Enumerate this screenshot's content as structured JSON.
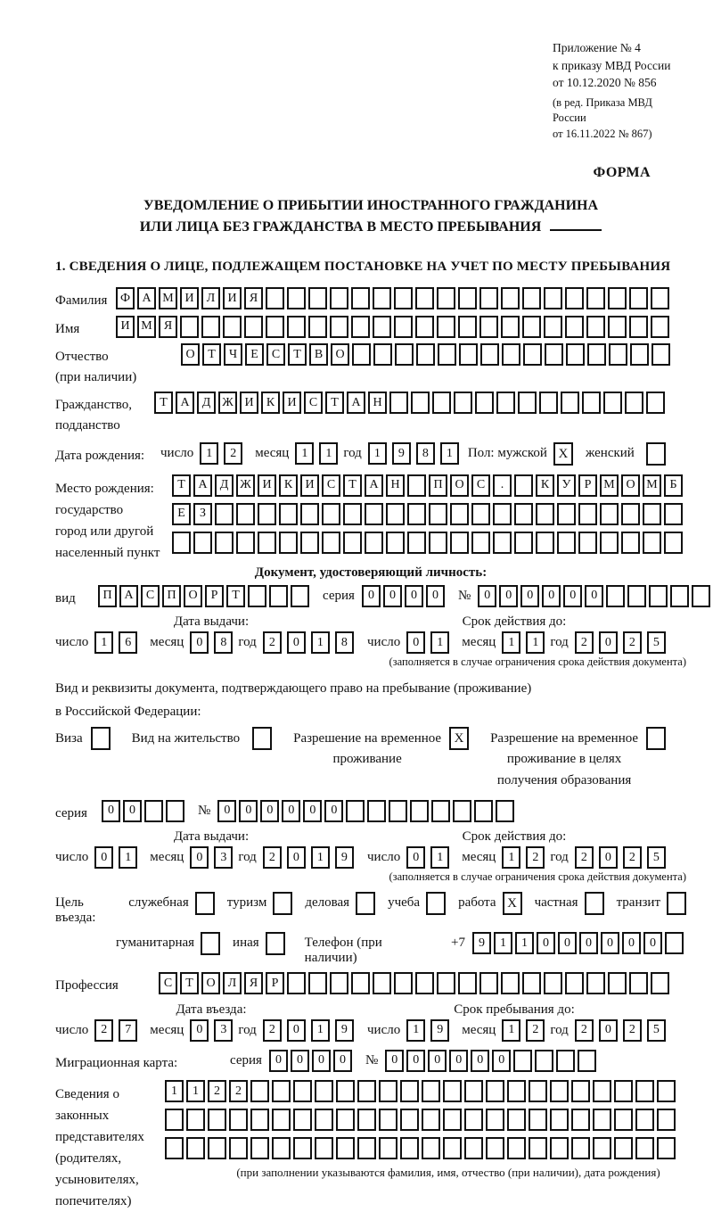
{
  "colors": {
    "background": "#ffffff",
    "text": "#111111",
    "box_border": "#111111"
  },
  "labels": {
    "day": "число",
    "month": "месяц",
    "year": "год",
    "series": "серия",
    "number": "№",
    "issue_date": "Дата выдачи:",
    "valid_until": "Срок действия до:",
    "entry_date": "Дата въезда:",
    "stay_until": "Срок пребывания до:",
    "restriction_note": "(заполняется в случае ограничения срока действия документа)"
  },
  "header": {
    "annex_lines": [
      "Приложение № 4",
      "к приказу МВД России",
      "от 10.12.2020 № 856"
    ],
    "amendment_lines": [
      "(в ред. Приказа МВД России",
      "от 16.11.2022 № 867)"
    ],
    "form_word": "ФОРМА",
    "title_line1": "УВЕДОМЛЕНИЕ О ПРИБЫТИИ ИНОСТРАННОГО ГРАЖДАНИНА",
    "title_line2": "ИЛИ ЛИЦА БЕЗ ГРАЖДАНСТВА В МЕСТО ПРЕБЫВАНИЯ",
    "section1_title": "1. СВЕДЕНИЯ О ЛИЦЕ, ПОДЛЕЖАЩЕМ ПОСТАНОВКЕ НА УЧЕТ ПО МЕСТУ ПРЕБЫВАНИЯ"
  },
  "person": {
    "surname": {
      "label": "Фамилия",
      "text": "ФАМИЛИЯ",
      "len": 26
    },
    "firstname": {
      "label": "Имя",
      "text": "ИМЯ",
      "len": 26
    },
    "patronymic": {
      "label_line1": "Отчество",
      "label_line2": "(при наличии)",
      "text": "ОТЧЕСТВО",
      "len": 23
    },
    "citizenship": {
      "label_line1": "Гражданство,",
      "label_line2": "подданство",
      "text": "ТАДЖИКИСТАН",
      "len": 24
    },
    "birth_date": {
      "label": "Дата рождения:",
      "day": "12",
      "month": "11",
      "year": "1981"
    },
    "sex": {
      "label": "Пол:",
      "male_label": "мужской",
      "male_checked": "X",
      "female_label": "женский",
      "female_checked": ""
    },
    "birth_place": {
      "label": "Место рождения:",
      "sub_labels": [
        "государство",
        "город или другой",
        "населенный пункт"
      ],
      "rows": [
        {
          "text": "ТАДЖИКИСТАН ПОС. КУРМОМБ",
          "len": 24
        },
        {
          "text": "ЕЗ",
          "len": 24
        },
        {
          "text": "",
          "len": 24
        }
      ]
    }
  },
  "identity_doc": {
    "heading": "Документ, удостоверяющий личность:",
    "kind": {
      "label": "вид",
      "text": "ПАСПОРТ",
      "len": 10
    },
    "series": {
      "text": "0000",
      "len": 4
    },
    "number": {
      "text": "000000",
      "len": 11
    },
    "issue": {
      "day": "16",
      "month": "08",
      "year": "2018"
    },
    "expiry": {
      "day": "01",
      "month": "11",
      "year": "2025"
    }
  },
  "residence_doc": {
    "intro_line1": "Вид и реквизиты документа, подтверждающего право на пребывание (проживание)",
    "intro_line2": "в Российской Федерации:",
    "options": [
      {
        "lines": [
          "Виза"
        ],
        "checked": ""
      },
      {
        "lines": [
          "Вид на жительство"
        ],
        "checked": ""
      },
      {
        "lines": [
          "Разрешение на временное",
          "проживание"
        ],
        "checked": "X"
      },
      {
        "lines": [
          "Разрешение на временное",
          "проживание в целях",
          "получения образования"
        ],
        "checked": ""
      }
    ],
    "series": {
      "text": "00",
      "len": 4
    },
    "number": {
      "text": "000000",
      "len": 14
    },
    "issue": {
      "day": "01",
      "month": "03",
      "year": "2019"
    },
    "expiry": {
      "day": "01",
      "month": "12",
      "year": "2025"
    }
  },
  "visit": {
    "purpose_label": "Цель въезда:",
    "purposes": [
      {
        "label": "служебная",
        "checked": ""
      },
      {
        "label": "туризм",
        "checked": ""
      },
      {
        "label": "деловая",
        "checked": ""
      },
      {
        "label": "учеба",
        "checked": ""
      },
      {
        "label": "работа",
        "checked": "X"
      },
      {
        "label": "частная",
        "checked": ""
      },
      {
        "label": "транзит",
        "checked": ""
      },
      {
        "label": "гуманитарная",
        "checked": ""
      },
      {
        "label": "иная",
        "checked": ""
      }
    ],
    "phone": {
      "label": "Телефон (при наличии)",
      "prefix": "+7",
      "text": "911000000",
      "len": 10
    },
    "profession": {
      "label": "Профессия",
      "text": "СТОЛЯР",
      "len": 24
    },
    "entry": {
      "day": "27",
      "month": "03",
      "year": "2019"
    },
    "stay": {
      "day": "19",
      "month": "12",
      "year": "2025"
    },
    "migration_card": {
      "label": "Миграционная карта:",
      "series": {
        "text": "0000",
        "len": 4
      },
      "number": {
        "text": "000000",
        "len": 10
      }
    }
  },
  "representatives": {
    "label_lines": [
      "Сведения о",
      "законных",
      "представителях",
      "(родителях,",
      "усыновителях,",
      "попечителях)"
    ],
    "rows": [
      {
        "text": "1122",
        "len": 24
      },
      {
        "text": "",
        "len": 24
      },
      {
        "text": "",
        "len": 24
      }
    ],
    "note": "(при заполнении указываются фамилия, имя, отчество (при наличии), дата рождения)"
  }
}
